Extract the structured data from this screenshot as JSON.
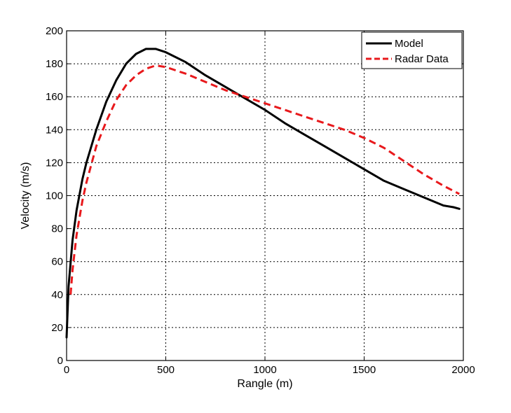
{
  "chart_data": {
    "type": "line",
    "title": "",
    "xlabel": "Rangle (m)",
    "ylabel": "Velocity (m/s)",
    "xlim": [
      0,
      2000
    ],
    "ylim": [
      0,
      200
    ],
    "x_ticks": [
      0,
      500,
      1000,
      1500,
      2000
    ],
    "y_ticks": [
      0,
      20,
      40,
      60,
      80,
      100,
      120,
      140,
      160,
      180,
      200
    ],
    "grid": true,
    "legend_position": "top-right",
    "series": [
      {
        "name": "Model",
        "color": "#000000",
        "style": "solid",
        "x": [
          0,
          10,
          30,
          50,
          80,
          100,
          150,
          200,
          250,
          300,
          350,
          400,
          450,
          500,
          600,
          700,
          800,
          900,
          1000,
          1100,
          1200,
          1300,
          1400,
          1500,
          1600,
          1700,
          1800,
          1900,
          1950,
          1980
        ],
        "y": [
          14,
          45,
          73,
          91,
          110,
          120,
          140,
          157,
          170,
          180,
          186,
          189,
          189,
          187,
          181,
          173,
          166,
          159,
          152,
          144,
          137,
          130,
          123,
          116,
          109,
          104,
          99,
          94,
          93,
          92
        ]
      },
      {
        "name": "Radar Data",
        "color": "#e8191c",
        "style": "dashed",
        "x": [
          20,
          30,
          50,
          80,
          100,
          150,
          200,
          250,
          300,
          350,
          400,
          450,
          500,
          600,
          700,
          800,
          900,
          1000,
          1100,
          1200,
          1300,
          1400,
          1500,
          1600,
          1700,
          1800,
          1900,
          1980
        ],
        "y": [
          40,
          55,
          76,
          97,
          108,
          130,
          145,
          158,
          167,
          173,
          177,
          179,
          178,
          174,
          169,
          164,
          160,
          156,
          152,
          148,
          144,
          140,
          135,
          129,
          121,
          113,
          106,
          101
        ]
      }
    ]
  }
}
